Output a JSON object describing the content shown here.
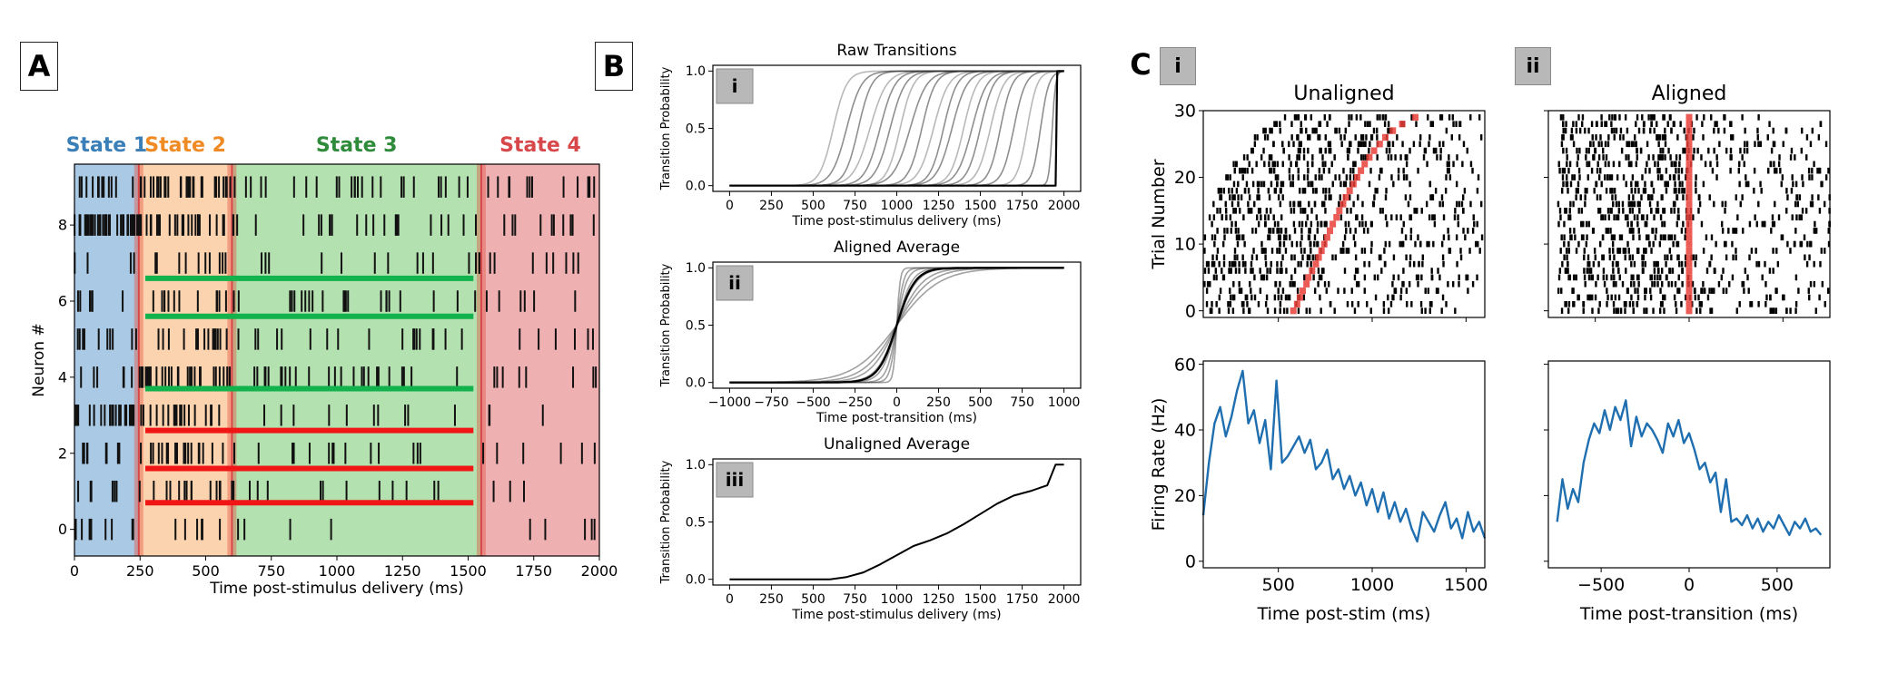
{
  "panel_labels": {
    "A": "A",
    "B": "B",
    "C": "C",
    "Ci": "i",
    "Cii": "ii"
  },
  "colors": {
    "state1": "#a9c9e4",
    "state2": "#fbd3ae",
    "state3": "#b3e2b0",
    "state4": "#efb0b2",
    "state1_text": "#3a7fb8",
    "state2_text": "#f08a24",
    "state3_text": "#2e8b3a",
    "state4_text": "#d8484b",
    "green_bar": "#12b24c",
    "red_bar": "#f01616",
    "trace": "#1f6fb0",
    "badge": "#b8b8b8"
  },
  "chart_data": [
    {
      "id": "A",
      "type": "scatter",
      "title": "",
      "xlabel": "Time post-stimulus delivery (ms)",
      "ylabel": "Neuron #",
      "xlim": [
        0,
        2000
      ],
      "ylim": [
        -0.7,
        9.6
      ],
      "xticks": [
        0,
        250,
        500,
        750,
        1000,
        1250,
        1500,
        1750,
        2000
      ],
      "yticks": [
        0,
        2,
        4,
        6,
        8
      ],
      "states": [
        {
          "name": "State 1",
          "start": 0,
          "end": 245
        },
        {
          "name": "State 2",
          "start": 245,
          "end": 600
        },
        {
          "name": "State 3",
          "start": 600,
          "end": 1550
        },
        {
          "name": "State 4",
          "start": 1550,
          "end": 2000
        }
      ],
      "transitions": [
        245,
        600,
        1550
      ],
      "bars": [
        {
          "neuron": 0.7,
          "start": 270,
          "end": 1520,
          "color": "red"
        },
        {
          "neuron": 1.6,
          "start": 270,
          "end": 1520,
          "color": "red"
        },
        {
          "neuron": 2.6,
          "start": 270,
          "end": 1520,
          "color": "red"
        },
        {
          "neuron": 3.7,
          "start": 270,
          "end": 1520,
          "color": "green"
        },
        {
          "neuron": 5.6,
          "start": 270,
          "end": 1520,
          "color": "green"
        },
        {
          "neuron": 6.6,
          "start": 270,
          "end": 1520,
          "color": "green"
        }
      ],
      "spike_rates": [
        [
          8,
          6,
          4,
          5
        ],
        [
          6,
          14,
          12,
          3
        ],
        [
          8,
          20,
          15,
          6
        ],
        [
          22,
          18,
          10,
          3
        ],
        [
          6,
          30,
          25,
          8
        ],
        [
          10,
          14,
          18,
          6
        ],
        [
          6,
          12,
          22,
          6
        ],
        [
          4,
          10,
          14,
          8
        ],
        [
          35,
          28,
          22,
          10
        ],
        [
          12,
          30,
          25,
          12
        ]
      ]
    },
    {
      "id": "Bi",
      "type": "line",
      "title": "Raw Transitions",
      "badge": "i",
      "xlabel": "Time post-stimulus delivery (ms)",
      "ylabel": "Transition Probability",
      "xlim": [
        -100,
        2100
      ],
      "ylim": [
        -0.05,
        1.05
      ],
      "xticks": [
        0,
        250,
        500,
        750,
        1000,
        1250,
        1500,
        1750,
        2000
      ],
      "yticks": [
        0.0,
        0.5,
        1.0
      ],
      "ytick_labels": [
        "0.0",
        "0.5",
        "1.0"
      ],
      "curves": [
        {
          "center": 620,
          "width": 40
        },
        {
          "center": 700,
          "width": 45
        },
        {
          "center": 770,
          "width": 40
        },
        {
          "center": 840,
          "width": 50
        },
        {
          "center": 900,
          "width": 45
        },
        {
          "center": 960,
          "width": 45
        },
        {
          "center": 1020,
          "width": 40
        },
        {
          "center": 1080,
          "width": 50
        },
        {
          "center": 1150,
          "width": 40
        },
        {
          "center": 1220,
          "width": 45
        },
        {
          "center": 1280,
          "width": 40
        },
        {
          "center": 1330,
          "width": 45
        },
        {
          "center": 1400,
          "width": 40
        },
        {
          "center": 1450,
          "width": 45
        },
        {
          "center": 1500,
          "width": 40
        },
        {
          "center": 1560,
          "width": 40
        },
        {
          "center": 1620,
          "width": 35
        },
        {
          "center": 1700,
          "width": 35
        },
        {
          "center": 1780,
          "width": 30
        },
        {
          "center": 1860,
          "width": 25
        },
        {
          "center": 1930,
          "width": 10
        }
      ]
    },
    {
      "id": "Bii",
      "type": "line",
      "title": "Aligned Average",
      "badge": "ii",
      "xlabel": "Time post-transition (ms)",
      "ylabel": "Transition Probability",
      "xlim": [
        -1100,
        1100
      ],
      "ylim": [
        -0.05,
        1.05
      ],
      "xticks": [
        -1000,
        -750,
        -500,
        -250,
        0,
        250,
        500,
        750,
        1000
      ],
      "xtick_labels": [
        "−1000",
        "−750",
        "−500",
        "−250",
        "0",
        "250",
        "500",
        "750",
        "1000"
      ],
      "yticks": [
        0.0,
        0.5,
        1.0
      ],
      "ytick_labels": [
        "0.0",
        "0.5",
        "1.0"
      ],
      "curve_widths": [
        10,
        20,
        30,
        45,
        60,
        80,
        100,
        130
      ],
      "mean_width": 55
    },
    {
      "id": "Biii",
      "type": "line",
      "title": "Unaligned Average",
      "badge": "iii",
      "xlabel": "Time post-stimulus delivery (ms)",
      "ylabel": "Transition Probability",
      "xlim": [
        -100,
        2100
      ],
      "ylim": [
        -0.05,
        1.05
      ],
      "xticks": [
        0,
        250,
        500,
        750,
        1000,
        1250,
        1500,
        1750,
        2000
      ],
      "yticks": [
        0.0,
        0.5,
        1.0
      ],
      "ytick_labels": [
        "0.0",
        "0.5",
        "1.0"
      ],
      "x": [
        0,
        200,
        400,
        600,
        700,
        800,
        900,
        1000,
        1100,
        1200,
        1300,
        1400,
        1500,
        1600,
        1700,
        1800,
        1900,
        1950,
        2000
      ],
      "y": [
        0.0,
        0.0,
        0.0,
        0.0,
        0.02,
        0.06,
        0.13,
        0.21,
        0.29,
        0.34,
        0.4,
        0.48,
        0.57,
        0.66,
        0.73,
        0.77,
        0.82,
        1.0,
        1.0
      ]
    },
    {
      "id": "Ci_raster",
      "type": "scatter",
      "title": "Unaligned",
      "ylabel": "Trial Number",
      "xlim": [
        100,
        1600
      ],
      "ylim": [
        -1,
        30
      ],
      "xticks": [
        500,
        1000,
        1500
      ],
      "yticks": [
        0,
        10,
        20,
        30
      ],
      "trials": 30,
      "transition_times": [
        580,
        600,
        615,
        630,
        650,
        660,
        680,
        700,
        715,
        730,
        745,
        760,
        775,
        790,
        810,
        825,
        845,
        860,
        880,
        900,
        920,
        940,
        960,
        985,
        1010,
        1040,
        1070,
        1110,
        1160,
        1230
      ]
    },
    {
      "id": "Cii_raster",
      "type": "scatter",
      "title": "Aligned",
      "xlim": [
        -750,
        750
      ],
      "ylim": [
        -1,
        30
      ],
      "xticks": [
        -500,
        0,
        500
      ],
      "yticks": [
        0,
        10,
        20,
        30
      ]
    },
    {
      "id": "Ci_rate",
      "type": "line",
      "xlabel": "Time post-stim (ms)",
      "ylabel": "Firing Rate (Hz)",
      "xlim": [
        100,
        1600
      ],
      "ylim": [
        -2,
        61
      ],
      "xticks": [
        500,
        1000,
        1500
      ],
      "yticks": [
        0,
        20,
        40,
        60
      ],
      "x": [
        100,
        130,
        160,
        190,
        220,
        250,
        280,
        310,
        340,
        370,
        400,
        430,
        460,
        490,
        520,
        550,
        580,
        610,
        640,
        670,
        700,
        730,
        760,
        790,
        820,
        850,
        880,
        910,
        940,
        970,
        1000,
        1030,
        1060,
        1090,
        1120,
        1150,
        1180,
        1210,
        1240,
        1270,
        1300,
        1330,
        1360,
        1390,
        1420,
        1450,
        1480,
        1510,
        1540,
        1570,
        1600
      ],
      "y": [
        14,
        30,
        42,
        47,
        38,
        44,
        52,
        58,
        42,
        46,
        36,
        43,
        28,
        55,
        30,
        32,
        35,
        38,
        33,
        37,
        28,
        30,
        34,
        25,
        28,
        22,
        26,
        20,
        24,
        17,
        22,
        15,
        21,
        13,
        18,
        12,
        16,
        10,
        6,
        15,
        12,
        9,
        14,
        18,
        10,
        13,
        7,
        15,
        9,
        12,
        7
      ]
    },
    {
      "id": "Cii_rate",
      "type": "line",
      "xlabel": "Time post-transition (ms)",
      "xlim": [
        -800,
        800
      ],
      "ylim": [
        -2,
        61
      ],
      "xticks": [
        -500,
        0,
        500
      ],
      "xtick_labels": [
        "−500",
        "0",
        "500"
      ],
      "yticks": [
        0,
        20,
        40,
        60
      ],
      "x": [
        -750,
        -720,
        -690,
        -660,
        -630,
        -600,
        -570,
        -540,
        -510,
        -480,
        -450,
        -420,
        -390,
        -360,
        -330,
        -300,
        -270,
        -240,
        -210,
        -180,
        -150,
        -120,
        -90,
        -60,
        -30,
        0,
        30,
        60,
        90,
        120,
        150,
        180,
        210,
        240,
        270,
        300,
        330,
        360,
        390,
        420,
        450,
        480,
        510,
        540,
        570,
        600,
        630,
        660,
        690,
        720,
        750
      ],
      "y": [
        12,
        25,
        16,
        22,
        18,
        30,
        37,
        42,
        39,
        46,
        40,
        47,
        43,
        49,
        35,
        44,
        38,
        42,
        40,
        37,
        33,
        42,
        38,
        43,
        36,
        39,
        34,
        28,
        30,
        24,
        27,
        15,
        25,
        12,
        13,
        11,
        14,
        10,
        13,
        9,
        12,
        10,
        14,
        11,
        8,
        12,
        10,
        13,
        9,
        10,
        8
      ]
    }
  ]
}
